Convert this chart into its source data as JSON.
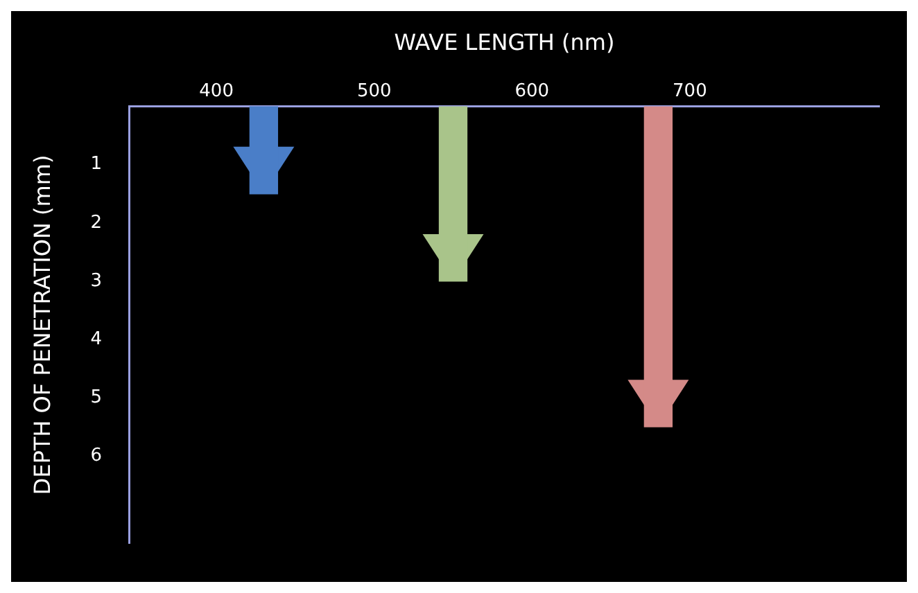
{
  "chart_data": {
    "type": "bar",
    "xlabel": "WAVE LENGTH (nm)",
    "ylabel": "DEPTH OF PENETRATION (mm)",
    "x": [
      430,
      550,
      680
    ],
    "values": [
      1.5,
      3,
      5.5
    ],
    "colors": [
      "#4a7ec8",
      "#a9c48a",
      "#d48a88"
    ],
    "xlim": [
      345,
      820
    ],
    "xticks": [
      400,
      500,
      600,
      700
    ],
    "ylim": [
      7.5,
      0
    ],
    "yticks": [
      1,
      2,
      3,
      4,
      5,
      6
    ],
    "grid": false,
    "legend": false
  }
}
